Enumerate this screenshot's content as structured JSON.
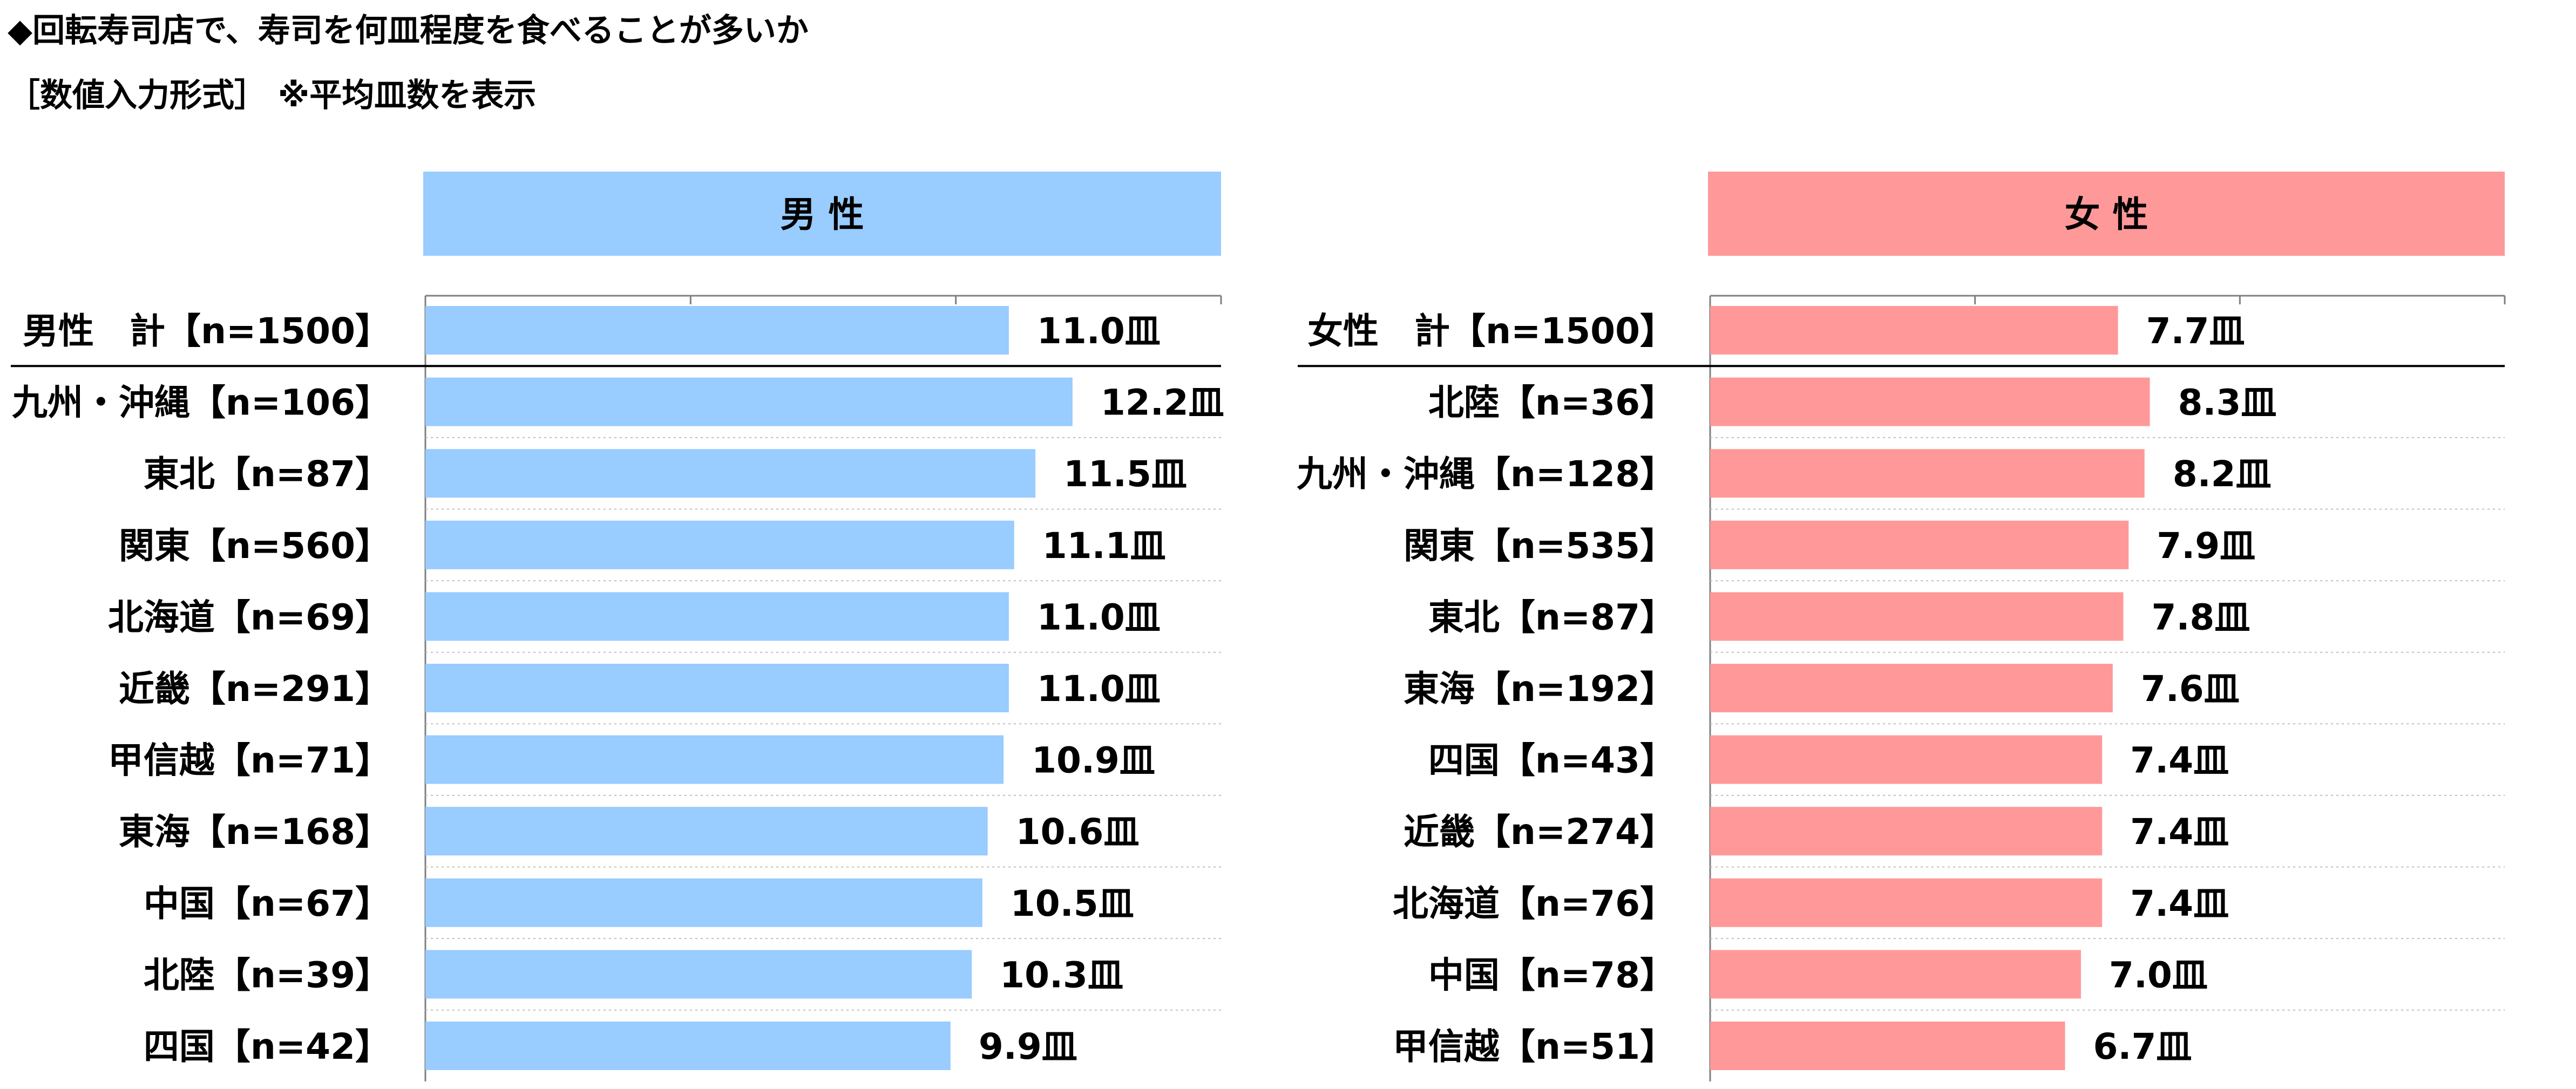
{
  "title": "◆回転寿司店で、寿司を何皿程度を食べることが多いか",
  "subtitle": "［数値入力形式］ ※平均皿数を表示",
  "colors": {
    "male_bar": "#99CCFF",
    "female_bar": "#FF9999",
    "axis": "#7F7F7F",
    "separator": "#BFBFBF"
  },
  "chart_data": [
    {
      "type": "bar",
      "orientation": "horizontal",
      "title": "男 性",
      "unit": "皿",
      "xlim": [
        0,
        15
      ],
      "categories": [
        "男性　計【n=1500】",
        "九州・沖縄【n=106】",
        "東北【n=87】",
        "関東【n=560】",
        "北海道【n=69】",
        "近畿【n=291】",
        "甲信越【n=71】",
        "東海【n=168】",
        "中国【n=67】",
        "北陸【n=39】",
        "四国【n=42】"
      ],
      "values": [
        11.0,
        12.2,
        11.5,
        11.1,
        11.0,
        11.0,
        10.9,
        10.6,
        10.5,
        10.3,
        9.9
      ],
      "labels": [
        "11.0皿",
        "12.2皿",
        "11.5皿",
        "11.1皿",
        "11.0皿",
        "11.0皿",
        "10.9皿",
        "10.6皿",
        "10.5皿",
        "10.3皿",
        "9.9皿"
      ]
    },
    {
      "type": "bar",
      "orientation": "horizontal",
      "title": "女 性",
      "unit": "皿",
      "xlim": [
        0,
        15
      ],
      "categories": [
        "女性　計【n=1500】",
        "北陸【n=36】",
        "九州・沖縄【n=128】",
        "関東【n=535】",
        "東北【n=87】",
        "東海【n=192】",
        "四国【n=43】",
        "近畿【n=274】",
        "北海道【n=76】",
        "中国【n=78】",
        "甲信越【n=51】"
      ],
      "values": [
        7.7,
        8.3,
        8.2,
        7.9,
        7.8,
        7.6,
        7.4,
        7.4,
        7.4,
        7.0,
        6.7
      ],
      "labels": [
        "7.7皿",
        "8.3皿",
        "8.2皿",
        "7.9皿",
        "7.8皿",
        "7.6皿",
        "7.4皿",
        "7.4皿",
        "7.4皿",
        "7.0皿",
        "6.7皿"
      ]
    }
  ]
}
